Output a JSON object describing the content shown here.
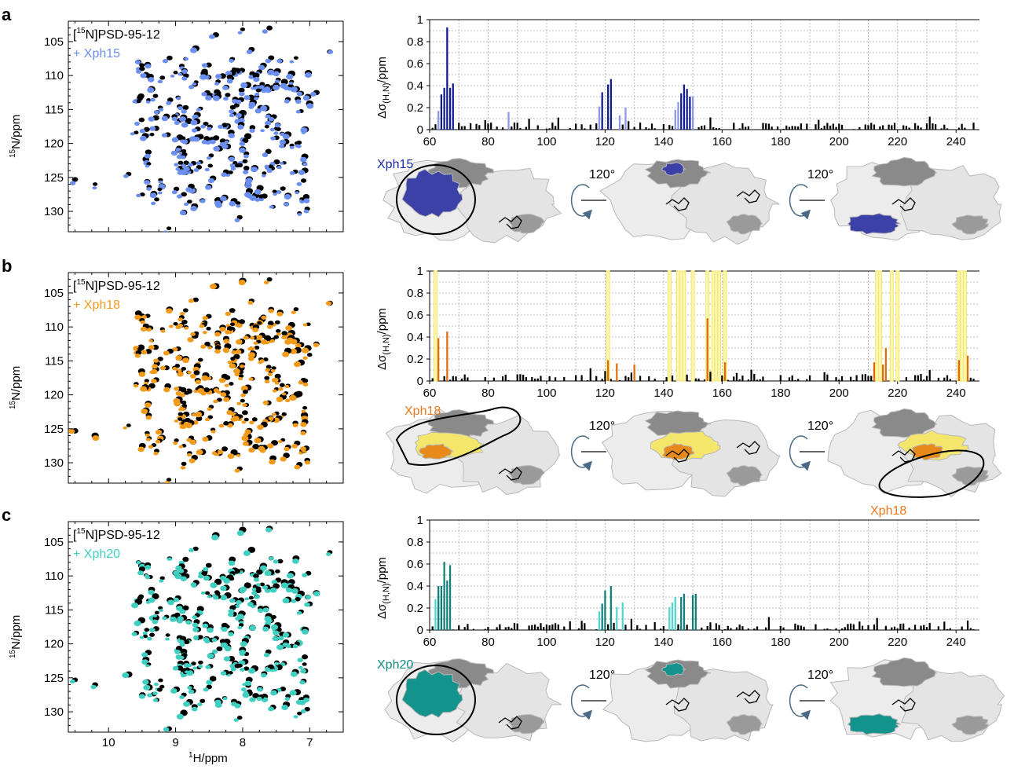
{
  "panels": [
    {
      "letter": "a",
      "protein_label": "[",
      "protein_label_sup": "15",
      "protein_label_rest": "N]PSD-95-12",
      "ligand_label": "+ Xph15",
      "ligand": "Xph15",
      "colors": {
        "spectrum": "#6b8ff0",
        "strong": "#0e1a8c",
        "weak": "#8c95e6",
        "surface": "#3b41a6",
        "label": "#1a2aa8"
      }
    },
    {
      "letter": "b",
      "protein_label": "[",
      "protein_label_sup": "15",
      "protein_label_rest": "N]PSD-95-12",
      "ligand_label": "+ Xph18",
      "ligand": "Xph18",
      "colors": {
        "spectrum": "#f29a1a",
        "strong": "#e06b0a",
        "weak": "#f4e66a",
        "surface": "#e88a1a",
        "label": "#e87820"
      }
    },
    {
      "letter": "c",
      "protein_label": "[",
      "protein_label_sup": "15",
      "protein_label_rest": "N]PSD-95-12",
      "ligand_label": "+ Xph20",
      "ligand": "Xph20",
      "colors": {
        "spectrum": "#3fcfc0",
        "strong": "#0d7f7a",
        "weak": "#4fd6cc",
        "surface": "#14928c",
        "label": "#118a84"
      }
    }
  ],
  "rotation_label": "120°",
  "chart_data": [
    {
      "type": "scatter",
      "title": "",
      "xlabel": "1H/ppm",
      "ylabel": "15N/ppm",
      "xlim": [
        10.6,
        6.5
      ],
      "ylim": [
        133,
        102
      ],
      "x_ticks": [
        "10",
        "9",
        "8",
        "7"
      ],
      "y_ticks": [
        "105",
        "110",
        "115",
        "120",
        "125",
        "130"
      ],
      "series": [
        {
          "name": "[15N]PSD-95-12"
        },
        {
          "name": "+ Xph15"
        },
        {
          "name": "+ Xph18"
        },
        {
          "name": "+ Xph20"
        }
      ]
    },
    {
      "type": "bar",
      "xlabel": "",
      "ylabel": "Δσ(H,N)/ppm",
      "xlim": [
        60,
        248
      ],
      "ylim": [
        0,
        1
      ],
      "x_ticks": [
        "60",
        "80",
        "100",
        "120",
        "140",
        "160",
        "180",
        "200",
        "220",
        "240"
      ],
      "y_ticks": [
        "0",
        "0.2",
        "0.4",
        "0.6",
        "0.8",
        "1"
      ],
      "series": [
        {
          "name": "Xph15",
          "strong": [
            [
              64,
              0.32
            ],
            [
              65,
              0.38
            ],
            [
              66,
              0.93
            ],
            [
              67,
              0.38
            ],
            [
              68,
              0.42
            ],
            [
              119,
              0.34
            ],
            [
              121,
              0.41
            ],
            [
              122,
              0.46
            ],
            [
              146,
              0.33
            ],
            [
              147,
              0.41
            ],
            [
              148,
              0.37
            ],
            [
              149,
              0.3
            ]
          ],
          "weak": [
            [
              63,
              0.17
            ],
            [
              87,
              0.16
            ],
            [
              118,
              0.21
            ],
            [
              125,
              0.13
            ],
            [
              127,
              0.2
            ],
            [
              144,
              0.18
            ],
            [
              145,
              0.25
            ],
            [
              150,
              0.3
            ]
          ]
        },
        {
          "name": "Xph18",
          "strong": [
            [
              63,
              0.39
            ],
            [
              66,
              0.45
            ],
            [
              121,
              0.19
            ],
            [
              124,
              0.16
            ],
            [
              130,
              0.15
            ],
            [
              155,
              0.57
            ],
            [
              161,
              0.17
            ],
            [
              212,
              0.17
            ],
            [
              215,
              0.15
            ],
            [
              216,
              0.3
            ],
            [
              241,
              0.19
            ],
            [
              244,
              0.23
            ]
          ],
          "weak_full": [
            62,
            121,
            142,
            145,
            146,
            147,
            150,
            155,
            157,
            158,
            159,
            161,
            213,
            214,
            218,
            220,
            241,
            242,
            243
          ]
        },
        {
          "name": "Xph20",
          "strong": [
            [
              63,
              0.4
            ],
            [
              64,
              0.4
            ],
            [
              65,
              0.62
            ],
            [
              66,
              0.45
            ],
            [
              67,
              0.59
            ],
            [
              119,
              0.24
            ],
            [
              120,
              0.36
            ],
            [
              122,
              0.4
            ],
            [
              146,
              0.3
            ],
            [
              147,
              0.33
            ],
            [
              150,
              0.32
            ],
            [
              151,
              0.33
            ]
          ],
          "weak": [
            [
              62,
              0.28
            ],
            [
              63,
              0.25
            ],
            [
              64,
              0.28
            ],
            [
              118,
              0.17
            ],
            [
              124,
              0.21
            ],
            [
              126,
              0.25
            ],
            [
              142,
              0.21
            ],
            [
              143,
              0.25
            ],
            [
              144,
              0.3
            ]
          ]
        }
      ]
    }
  ]
}
